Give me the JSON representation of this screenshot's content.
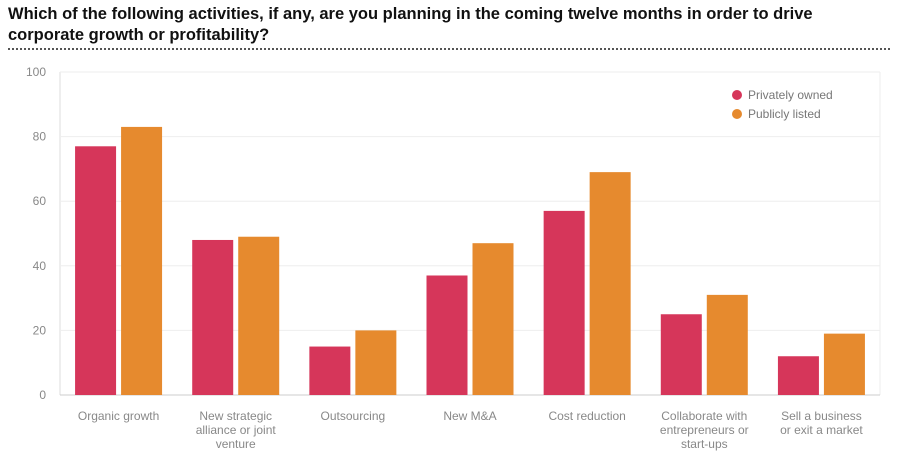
{
  "chart_data": {
    "type": "bar",
    "title": "Which of the following activities, if any, are you planning in the coming twelve months in order to drive corporate growth or profitability?",
    "xlabel": "",
    "ylabel": "",
    "ylim": [
      0,
      100
    ],
    "yticks": [
      0,
      20,
      40,
      60,
      80,
      100
    ],
    "grid": true,
    "legend_position": "top-right",
    "categories": [
      [
        "Organic growth"
      ],
      [
        "New strategic",
        "alliance or joint",
        "venture"
      ],
      [
        "Outsourcing"
      ],
      [
        "New M&A"
      ],
      [
        "Cost reduction"
      ],
      [
        "Collaborate with",
        "entrepreneurs or",
        "start-ups"
      ],
      [
        "Sell a business",
        "or exit a market"
      ]
    ],
    "series": [
      {
        "name": "Privately owned",
        "color": "#d6365a",
        "values": [
          77,
          48,
          15,
          37,
          57,
          25,
          12
        ]
      },
      {
        "name": "Publicly listed",
        "color": "#e68a2e",
        "values": [
          83,
          49,
          20,
          47,
          69,
          31,
          19
        ]
      }
    ]
  }
}
